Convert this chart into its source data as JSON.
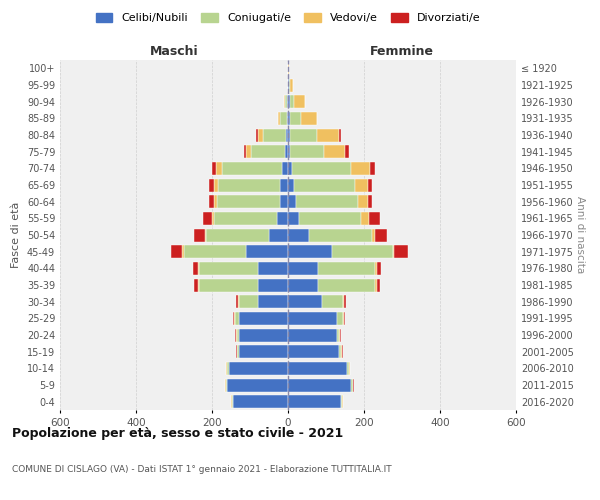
{
  "age_groups": [
    "0-4",
    "5-9",
    "10-14",
    "15-19",
    "20-24",
    "25-29",
    "30-34",
    "35-39",
    "40-44",
    "45-49",
    "50-54",
    "55-59",
    "60-64",
    "65-69",
    "70-74",
    "75-79",
    "80-84",
    "85-89",
    "90-94",
    "95-99",
    "100+"
  ],
  "birth_years": [
    "2016-2020",
    "2011-2015",
    "2006-2010",
    "2001-2005",
    "1996-2000",
    "1991-1995",
    "1986-1990",
    "1981-1985",
    "1976-1980",
    "1971-1975",
    "1966-1970",
    "1961-1965",
    "1956-1960",
    "1951-1955",
    "1946-1950",
    "1941-1945",
    "1936-1940",
    "1931-1935",
    "1926-1930",
    "1921-1925",
    "≤ 1920"
  ],
  "male": {
    "celibi": [
      145,
      160,
      155,
      130,
      130,
      130,
      80,
      80,
      80,
      110,
      50,
      30,
      22,
      20,
      15,
      8,
      5,
      3,
      2,
      0,
      0
    ],
    "coniugati": [
      3,
      3,
      5,
      3,
      5,
      10,
      50,
      155,
      155,
      165,
      165,
      165,
      165,
      165,
      160,
      90,
      60,
      18,
      5,
      0,
      0
    ],
    "vedovi": [
      1,
      2,
      2,
      2,
      2,
      2,
      2,
      3,
      3,
      3,
      3,
      5,
      8,
      10,
      15,
      12,
      15,
      5,
      3,
      0,
      0
    ],
    "divorziati": [
      1,
      2,
      2,
      2,
      2,
      2,
      5,
      10,
      12,
      30,
      30,
      25,
      12,
      12,
      10,
      5,
      5,
      0,
      0,
      0,
      0
    ]
  },
  "female": {
    "nubili": [
      140,
      165,
      155,
      135,
      130,
      130,
      90,
      80,
      80,
      115,
      55,
      28,
      20,
      15,
      10,
      5,
      5,
      5,
      5,
      2,
      0
    ],
    "coniugate": [
      3,
      5,
      5,
      5,
      5,
      15,
      55,
      150,
      150,
      160,
      165,
      165,
      165,
      160,
      155,
      90,
      70,
      30,
      10,
      2,
      0
    ],
    "vedove": [
      1,
      2,
      2,
      2,
      2,
      2,
      3,
      3,
      5,
      5,
      10,
      20,
      25,
      35,
      50,
      55,
      60,
      40,
      30,
      8,
      2
    ],
    "divorziate": [
      1,
      2,
      2,
      2,
      2,
      2,
      5,
      10,
      10,
      35,
      30,
      30,
      12,
      12,
      15,
      10,
      5,
      0,
      0,
      0,
      0
    ]
  },
  "colors": {
    "celibi": "#4472c4",
    "coniugati": "#b8d490",
    "vedovi": "#f0c060",
    "divorziati": "#cc2020"
  },
  "title": "Popolazione per età, sesso e stato civile - 2021",
  "subtitle": "COMUNE DI CISLAGO (VA) - Dati ISTAT 1° gennaio 2021 - Elaborazione TUTTITALIA.IT",
  "xlabel_left": "Maschi",
  "xlabel_right": "Femmine",
  "ylabel_left": "Fasce di età",
  "ylabel_right": "Anni di nascita",
  "xlim": 600,
  "legend_labels": [
    "Celibi/Nubili",
    "Coniugati/e",
    "Vedovi/e",
    "Divorziati/e"
  ],
  "bg_color": "#f0f0f0",
  "plot_bg": "#f0f0f0"
}
